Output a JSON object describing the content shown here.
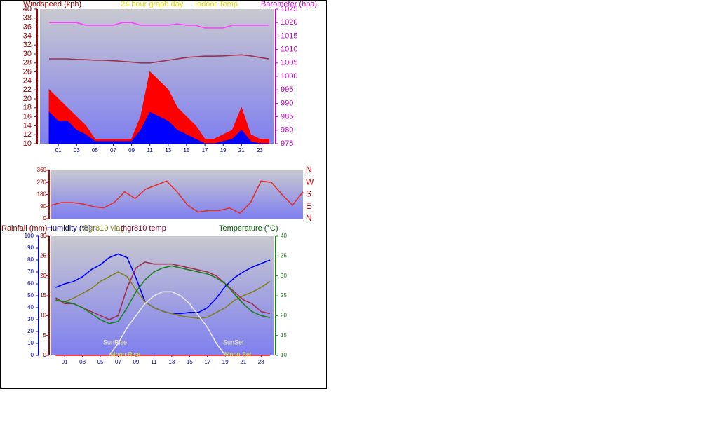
{
  "chart_data": [
    {
      "type": "area",
      "title": "24 hour graph day",
      "y_label": "Windspeed (kph)",
      "y2_label": "Barometer (hpa)",
      "x": [
        0,
        1,
        2,
        3,
        4,
        5,
        6,
        7,
        8,
        9,
        10,
        11,
        12,
        13,
        14,
        15,
        16,
        17,
        18,
        19,
        20,
        21,
        22,
        23,
        24
      ],
      "xlim": [
        -1,
        24.5
      ],
      "xticks": [
        {
          "value": 1,
          "label": "01"
        },
        {
          "value": 3,
          "label": "03"
        },
        {
          "value": 5,
          "label": "05"
        },
        {
          "value": 7,
          "label": "07"
        },
        {
          "value": 9,
          "label": "09"
        },
        11,
        13,
        15,
        17,
        19,
        21,
        23
      ],
      "ylim": [
        10,
        40
      ],
      "yticks": [
        10,
        12,
        14,
        16,
        18,
        20,
        22,
        24,
        26,
        28,
        30,
        32,
        34,
        36,
        38,
        40
      ],
      "y2lim": [
        975,
        1025
      ],
      "y2ticks": [
        975,
        980,
        985,
        990,
        995,
        1000,
        1005,
        1010,
        1015,
        1020,
        1025
      ],
      "series": [
        {
          "color": "#ff0000",
          "type": "area",
          "values": [
            22,
            20,
            18,
            16,
            14,
            11,
            11,
            11,
            11,
            11,
            16,
            26,
            24,
            22,
            18,
            16,
            14,
            11,
            11,
            12,
            13,
            18,
            12,
            11,
            11
          ]
        },
        {
          "color": "#0000ff",
          "type": "area",
          "values": [
            17,
            15,
            15,
            13,
            12,
            10.5,
            10.5,
            10.5,
            10.5,
            10.5,
            13,
            17,
            16,
            15,
            13,
            12,
            11,
            10,
            10,
            10.5,
            11,
            13,
            10.5,
            10,
            10
          ]
        },
        {
          "color": "#ff40ff",
          "axis": "y2",
          "values": [
            1020,
            1020,
            1020,
            1020,
            1019,
            1019,
            1019,
            1019,
            1020,
            1020,
            1019,
            1019,
            1019,
            1019,
            1019.5,
            1019,
            1019,
            1018,
            1018,
            1018,
            1019,
            1019,
            1019,
            1019,
            1019
          ]
        },
        {
          "name": "Indoor Temp",
          "color": "#a03050",
          "axis": "y2",
          "values": [
            1006.5,
            1006.5,
            1006.5,
            1006.3,
            1006.2,
            1006,
            1006,
            1005.8,
            1005.6,
            1005.3,
            1005,
            1005,
            1005.5,
            1006,
            1006.5,
            1007,
            1007.3,
            1007.5,
            1007.5,
            1007.6,
            1007.8,
            1008,
            1007.6,
            1007,
            1006.5
          ]
        }
      ]
    },
    {
      "type": "line",
      "x": [
        0,
        1,
        2,
        3,
        4,
        5,
        6,
        7,
        8,
        9,
        10,
        11,
        12,
        13,
        14,
        15,
        16,
        17,
        18,
        19,
        20,
        21,
        22,
        23,
        24
      ],
      "xlim": [
        0,
        24
      ],
      "ylim": [
        0,
        360
      ],
      "yticks": [
        0,
        90,
        180,
        270,
        360
      ],
      "y2lim": [
        0,
        360
      ],
      "y2ticks": [
        {
          "value": 0,
          "label": "N"
        },
        {
          "value": 90,
          "label": "E"
        },
        {
          "value": 180,
          "label": "S"
        },
        {
          "value": 270,
          "label": "W"
        },
        {
          "value": 360,
          "label": "N"
        }
      ],
      "series": [
        {
          "color": "#e03030",
          "values": [
            100,
            120,
            120,
            110,
            90,
            80,
            120,
            200,
            150,
            220,
            250,
            280,
            200,
            100,
            50,
            60,
            60,
            80,
            40,
            120,
            280,
            270,
            180,
            100,
            200
          ]
        }
      ]
    },
    {
      "type": "line",
      "y_label": "Humidity (%)",
      "y2_label": "Temperature (°C)",
      "y3_label": "Rainfall (mm)",
      "annotations": [
        "SunRise",
        "Moon Rise",
        "SunSet",
        "Moon Set"
      ],
      "x": [
        0,
        1,
        2,
        3,
        4,
        5,
        6,
        7,
        8,
        9,
        10,
        11,
        12,
        13,
        14,
        15,
        16,
        17,
        18,
        19,
        20,
        21,
        22,
        23,
        24
      ],
      "xlim": [
        -0.5,
        24.4
      ],
      "xticks": [
        {
          "value": 1,
          "label": "01"
        },
        {
          "value": 3,
          "label": "03"
        },
        {
          "value": 5,
          "label": "05"
        },
        {
          "value": 7,
          "label": "07"
        },
        {
          "value": 9,
          "label": "09"
        },
        11,
        13,
        15,
        17,
        19,
        21,
        23
      ],
      "ylim": [
        0,
        100
      ],
      "yticks": [
        0,
        10,
        20,
        30,
        40,
        50,
        60,
        70,
        80,
        90,
        100
      ],
      "y2lim": [
        10,
        40
      ],
      "y2ticks": [
        10,
        15,
        20,
        25,
        30,
        35,
        40
      ],
      "y3lim": [
        0,
        30
      ],
      "y3ticks": [
        0,
        5,
        10,
        15,
        20,
        25,
        30
      ],
      "series": [
        {
          "color": "#ff0000",
          "axis": "y3",
          "values": [
            0,
            0,
            0,
            0,
            0,
            0,
            0,
            0,
            0,
            0,
            0,
            0,
            0,
            0,
            0,
            0,
            0,
            0,
            0,
            0,
            0,
            0,
            0,
            0,
            0
          ]
        },
        {
          "color": "#0000ff",
          "values": [
            57,
            60,
            62,
            66,
            72,
            76,
            82,
            85,
            82,
            65,
            45,
            40,
            37,
            35,
            35,
            36,
            36,
            40,
            48,
            58,
            65,
            70,
            74,
            77,
            80
          ]
        },
        {
          "name": "thgr810 vlag",
          "color": "#808020",
          "values": [
            46,
            45,
            48,
            52,
            56,
            62,
            66,
            70,
            66,
            55,
            45,
            40,
            37,
            35,
            33,
            32,
            31,
            32,
            36,
            40,
            46,
            50,
            53,
            57,
            62
          ]
        },
        {
          "name": "thgr810 temp",
          "color": "#a03050",
          "axis": "y2",
          "values": [
            24.5,
            23,
            23,
            22,
            21,
            20,
            19,
            20,
            27,
            32,
            33.5,
            33,
            33,
            33,
            32.5,
            32,
            31.5,
            31,
            30,
            28,
            26,
            24,
            23,
            21,
            20.5
          ]
        },
        {
          "color": "#208020",
          "axis": "y2",
          "values": [
            24,
            23.5,
            23,
            22,
            20.5,
            19,
            18,
            18.5,
            22,
            26,
            29,
            31,
            32,
            32.5,
            32,
            31.5,
            31,
            30.5,
            29.5,
            28,
            25.5,
            23,
            21,
            20,
            19.5
          ]
        },
        {
          "color": "#e8e8e8",
          "axis": "y2",
          "values": [
            null,
            null,
            null,
            null,
            null,
            null,
            10,
            13,
            17,
            20,
            23,
            25,
            26,
            26,
            25,
            23,
            20,
            17,
            13,
            10,
            null,
            null,
            null,
            null,
            null
          ]
        }
      ]
    }
  ]
}
